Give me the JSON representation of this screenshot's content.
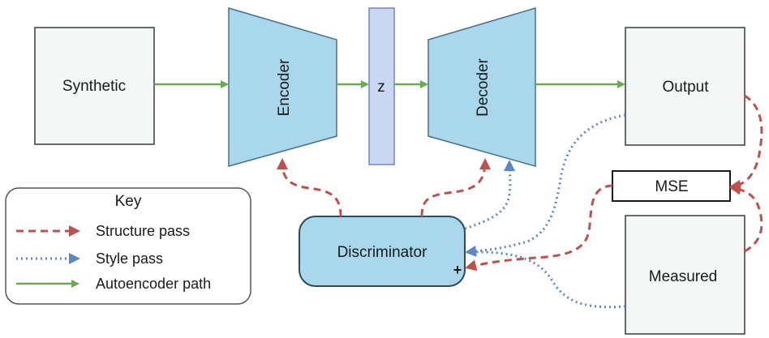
{
  "nodes": {
    "synthetic": "Synthetic",
    "encoder": "Encoder",
    "latent": "z",
    "decoder": "Decoder",
    "output": "Output",
    "mse": "MSE",
    "measured": "Measured",
    "discriminator": "Discriminator",
    "discriminator_mark": "+"
  },
  "key": {
    "title": "Key",
    "items": [
      {
        "label": "Structure pass",
        "style": "dashed",
        "color": "#c0504d"
      },
      {
        "label": "Style pass",
        "style": "dotted",
        "color": "#5b87c5"
      },
      {
        "label": "Autoencoder path",
        "style": "solid",
        "color": "#6aaa50"
      }
    ]
  },
  "colors": {
    "box_fill": "#f4f7f6",
    "box_stroke": "#3a3a3a",
    "network_fill": "#a9d8ec",
    "network_stroke": "#4a6f8a",
    "latent_fill": "#c9d7f2",
    "latent_stroke": "#6d87c4",
    "structure": "#c0504d",
    "style": "#5b87c5",
    "autoencoder": "#6aaa50"
  }
}
